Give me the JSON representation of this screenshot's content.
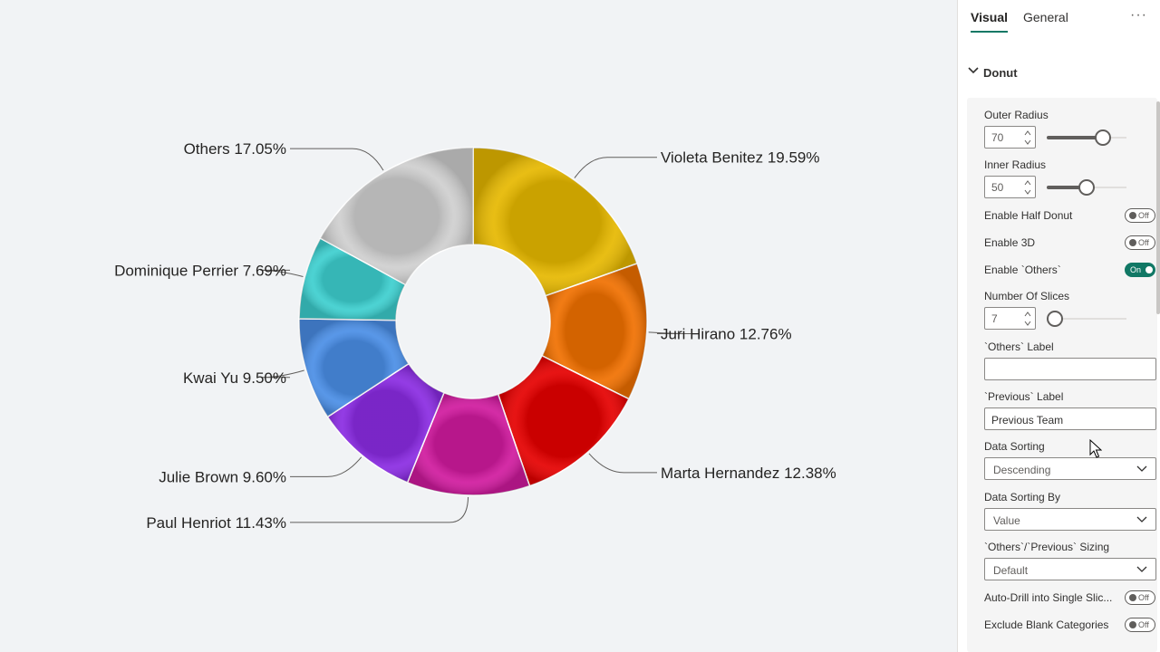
{
  "chart_data": {
    "type": "donut",
    "slices": [
      {
        "name": "Violeta Benitez",
        "value": 19.59,
        "label": "19.59%",
        "color": "#e6b800"
      },
      {
        "name": "Juri Hirano",
        "value": 12.76,
        "label": "12.76%",
        "color": "#f07000"
      },
      {
        "name": "Marta Hernandez",
        "value": 12.38,
        "label": "12.38%",
        "color": "#e50000"
      },
      {
        "name": "Paul Henriot",
        "value": 11.43,
        "label": "11.43%",
        "color": "#d01a9e"
      },
      {
        "name": "Julie Brown",
        "value": 9.6,
        "label": "9.60%",
        "color": "#8a2be2"
      },
      {
        "name": "Kwai Yu",
        "value": 9.5,
        "label": "9.50%",
        "color": "#4a8ee6"
      },
      {
        "name": "Dominique Perrier",
        "value": 7.69,
        "label": "7.69%",
        "color": "#3dcfcf"
      },
      {
        "name": "Others",
        "value": 17.05,
        "label": "17.05%",
        "color": "#cfcfcf"
      }
    ]
  },
  "panel": {
    "tabs": [
      {
        "label": "Visual",
        "active": true
      },
      {
        "label": "General",
        "active": false
      }
    ],
    "more_label": "···",
    "section_title": "Donut",
    "outer_radius": {
      "label": "Outer Radius",
      "value": "70",
      "percent": 70
    },
    "inner_radius": {
      "label": "Inner Radius",
      "value": "50",
      "percent": 50
    },
    "enable_half_donut": {
      "label": "Enable Half Donut",
      "state": "Off"
    },
    "enable_3d": {
      "label": "Enable 3D",
      "state": "Off"
    },
    "enable_others": {
      "label": "Enable `Others`",
      "state": "On"
    },
    "number_of_slices": {
      "label": "Number Of Slices",
      "value": "7",
      "percent": 0
    },
    "others_label": {
      "label": "`Others` Label",
      "value": ""
    },
    "previous_label": {
      "label": "`Previous` Label",
      "value": "Previous Team"
    },
    "data_sorting": {
      "label": "Data Sorting",
      "value": "Descending"
    },
    "data_sorting_by": {
      "label": "Data Sorting By",
      "value": "Value"
    },
    "sizing": {
      "label": "`Others`/`Previous` Sizing",
      "value": "Default"
    },
    "auto_drill": {
      "label": "Auto-Drill into Single Slic...",
      "state": "Off"
    },
    "exclude_blank": {
      "label": "Exclude Blank Categories",
      "state": "Off"
    }
  }
}
